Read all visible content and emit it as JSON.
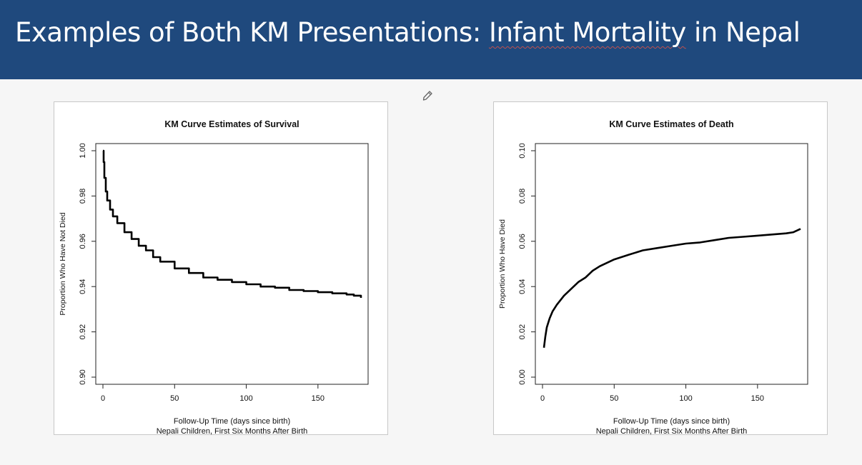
{
  "slide": {
    "title_pre": "Examples of Both KM Presentations: ",
    "title_mark": "Infant Mortality",
    "title_post": " in Nepal"
  },
  "icons": {
    "annotation": "pencil-icon"
  },
  "colors": {
    "header": "#1f497d",
    "title_text": "#ffffff",
    "curve": "#000000"
  },
  "chart_data": [
    {
      "type": "line",
      "title": "KM Curve Estimates of  Survival",
      "xlabel": "Follow-Up Time (days since birth)",
      "subtitle": "Nepali Children, First Six Months After Birth",
      "ylabel": "Proportion Who Have Not Died",
      "xlim": [
        0,
        180
      ],
      "ylim": [
        0.9,
        1.0
      ],
      "xticks": [
        0,
        50,
        100,
        150
      ],
      "yticks": [
        0.9,
        0.92,
        0.94,
        0.96,
        0.98,
        1.0
      ],
      "xtick_labels": [
        "0",
        "50",
        "100",
        "150"
      ],
      "ytick_labels": [
        "0.90",
        "0.92",
        "0.94",
        "0.96",
        "0.98",
        "1.00"
      ],
      "step": true,
      "series": [
        {
          "x": [
            0,
            0.5,
            1,
            2,
            3,
            5,
            7,
            10,
            15,
            20,
            25,
            30,
            35,
            40,
            50,
            60,
            70,
            80,
            90,
            100,
            110,
            120,
            130,
            140,
            150,
            160,
            170,
            175,
            180
          ],
          "values": [
            1.0,
            0.995,
            0.988,
            0.982,
            0.978,
            0.974,
            0.971,
            0.968,
            0.964,
            0.961,
            0.958,
            0.956,
            0.953,
            0.951,
            0.948,
            0.946,
            0.944,
            0.943,
            0.942,
            0.941,
            0.94,
            0.9395,
            0.9385,
            0.938,
            0.9375,
            0.937,
            0.9365,
            0.936,
            0.935
          ]
        }
      ]
    },
    {
      "type": "line",
      "title": "KM Curve Estimates of Death",
      "xlabel": "Follow-Up Time (days since birth)",
      "subtitle": "Nepali Children, First Six Months After Birth",
      "ylabel": "Proportion Who Have  Died",
      "xlim": [
        0,
        180
      ],
      "ylim": [
        0.0,
        0.1
      ],
      "xticks": [
        0,
        50,
        100,
        150
      ],
      "yticks": [
        0.0,
        0.02,
        0.04,
        0.06,
        0.08,
        0.1
      ],
      "xtick_labels": [
        "0",
        "50",
        "100",
        "150"
      ],
      "ytick_labels": [
        "0.00",
        "0.02",
        "0.04",
        "0.06",
        "0.08",
        "0.10"
      ],
      "step": false,
      "series": [
        {
          "x": [
            1,
            2,
            3,
            5,
            7,
            10,
            15,
            20,
            25,
            30,
            35,
            40,
            50,
            60,
            70,
            80,
            90,
            100,
            110,
            120,
            130,
            140,
            150,
            160,
            170,
            175,
            180
          ],
          "values": [
            0.013,
            0.018,
            0.022,
            0.026,
            0.029,
            0.032,
            0.036,
            0.039,
            0.042,
            0.044,
            0.047,
            0.049,
            0.052,
            0.054,
            0.056,
            0.057,
            0.058,
            0.059,
            0.0595,
            0.0605,
            0.0615,
            0.062,
            0.0625,
            0.063,
            0.0635,
            0.064,
            0.0655
          ]
        }
      ]
    }
  ]
}
